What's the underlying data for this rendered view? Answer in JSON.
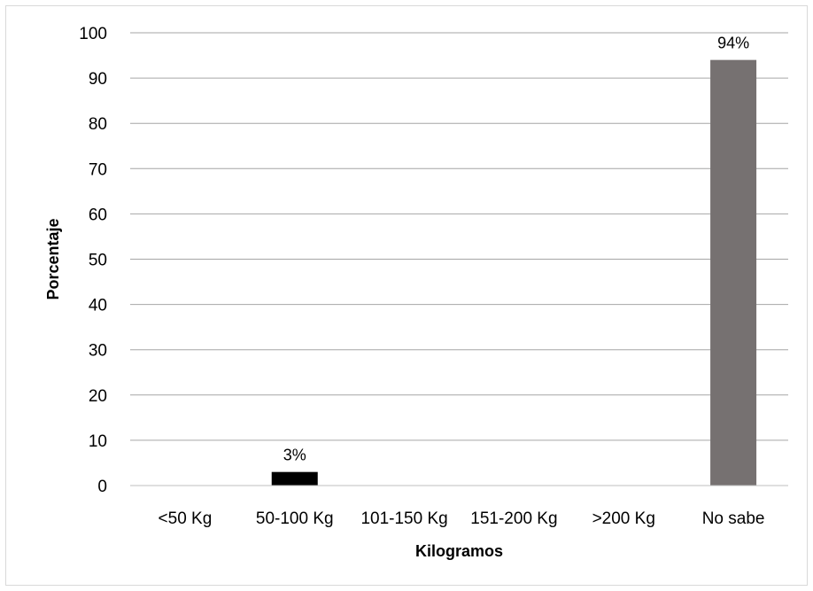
{
  "chart_data": {
    "type": "bar",
    "title": "",
    "xlabel": "Kilogramos",
    "ylabel": "Porcentaje",
    "categories": [
      "<50 Kg",
      "50-100 Kg",
      "101-150 Kg",
      "151-200 Kg",
      ">200 Kg",
      "No sabe"
    ],
    "values": [
      0,
      3,
      0,
      0,
      0,
      94
    ],
    "data_labels": [
      "",
      "3%",
      "",
      "",
      "",
      "94%"
    ],
    "bar_colors": [
      "#000000",
      "#000000",
      "#000000",
      "#000000",
      "#000000",
      "#767171"
    ],
    "ylim": [
      0,
      100
    ],
    "yticks": [
      "0",
      "10",
      "20",
      "30",
      "40",
      "50",
      "60",
      "70",
      "80",
      "90",
      "100"
    ],
    "grid": true,
    "legend": "none"
  }
}
